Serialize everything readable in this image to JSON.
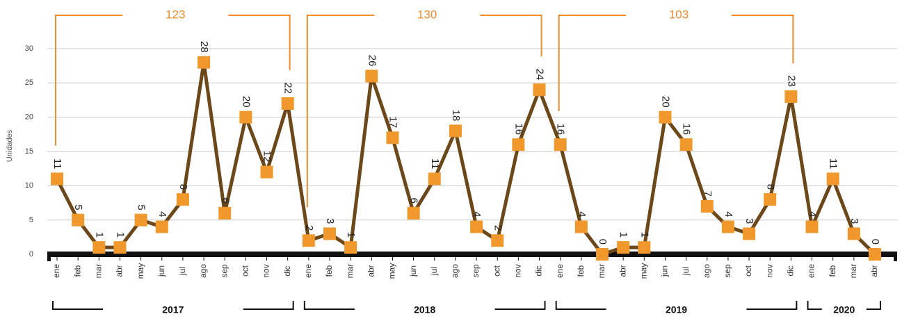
{
  "chart_data": {
    "type": "line",
    "y_label": "Unidades",
    "ylim": [
      0,
      30
    ],
    "yticks": [
      0,
      5,
      10,
      15,
      20,
      25,
      30
    ],
    "grid": true,
    "line_color": "#6b4719",
    "marker_color": "#f0982b",
    "annotation_color": "#ee8c2e",
    "groups": [
      {
        "label": "2017",
        "total": 123,
        "categories": [
          "ene",
          "feb",
          "mar",
          "abr",
          "may",
          "jun",
          "jul",
          "ago",
          "sep",
          "oct",
          "nov",
          "dic"
        ]
      },
      {
        "label": "2018",
        "total": 130,
        "categories": [
          "ene",
          "feb",
          "mar",
          "abr",
          "may",
          "jun",
          "jul",
          "ago",
          "sep",
          "oct",
          "nov",
          "dic"
        ]
      },
      {
        "label": "2019",
        "total": 103,
        "categories": [
          "ene",
          "feb",
          "mar",
          "abr",
          "may",
          "jun",
          "jul",
          "ago",
          "sep",
          "oct",
          "nov",
          "dic"
        ]
      },
      {
        "label": "2020",
        "categories": [
          "ene",
          "feb",
          "mar",
          "abr"
        ]
      }
    ],
    "values": [
      11,
      5,
      1,
      1,
      5,
      4,
      8,
      28,
      6,
      20,
      12,
      22,
      2,
      3,
      1,
      26,
      17,
      6,
      11,
      18,
      4,
      2,
      16,
      24,
      16,
      4,
      0,
      1,
      1,
      20,
      16,
      7,
      4,
      3,
      8,
      23,
      4,
      11,
      3,
      0
    ]
  }
}
